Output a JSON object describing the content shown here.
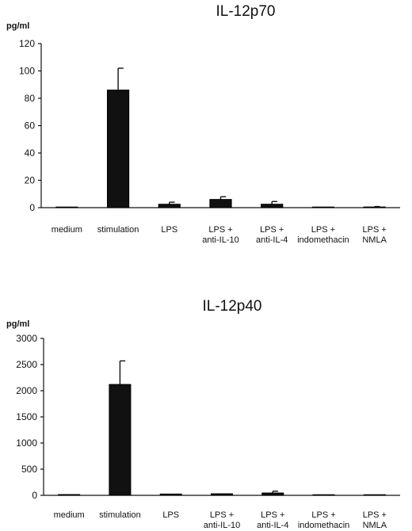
{
  "chart_data": [
    {
      "type": "bar",
      "title": "IL-12p70",
      "ylabel": "pg/ml",
      "xlabel": "",
      "categories": [
        [
          "medium"
        ],
        [
          "stimulation"
        ],
        [
          "LPS"
        ],
        [
          "LPS +",
          "anti-IL-10"
        ],
        [
          "LPS +",
          "anti-IL-4"
        ],
        [
          "LPS +",
          "indomethacin"
        ],
        [
          "LPS +",
          "NMLA"
        ]
      ],
      "values": [
        0,
        86,
        2.5,
        6,
        2.5,
        0,
        0.5
      ],
      "errors": [
        0,
        16,
        1.5,
        2,
        2,
        0,
        0.3
      ],
      "ylim": [
        0,
        120
      ],
      "yticks": [
        0,
        20,
        40,
        60,
        80,
        100,
        120
      ],
      "grid": false,
      "legend": "none",
      "bar_color": "#111111"
    },
    {
      "type": "bar",
      "title": "IL-12p40",
      "ylabel": "pg/ml",
      "xlabel": "",
      "categories": [
        [
          "medium"
        ],
        [
          "stimulation"
        ],
        [
          "LPS"
        ],
        [
          "LPS +",
          "anti-IL-10"
        ],
        [
          "LPS +",
          "anti-IL-4"
        ],
        [
          "LPS +",
          "indomethacin"
        ],
        [
          "LPS +",
          "NMLA"
        ]
      ],
      "values": [
        15,
        2120,
        25,
        30,
        45,
        0,
        0
      ],
      "errors": [
        0,
        450,
        0,
        0,
        35,
        0,
        0
      ],
      "ylim": [
        0,
        3000
      ],
      "yticks": [
        0,
        500,
        1000,
        1500,
        2000,
        2500,
        3000
      ],
      "grid": false,
      "legend": "none",
      "bar_color": "#111111"
    }
  ]
}
